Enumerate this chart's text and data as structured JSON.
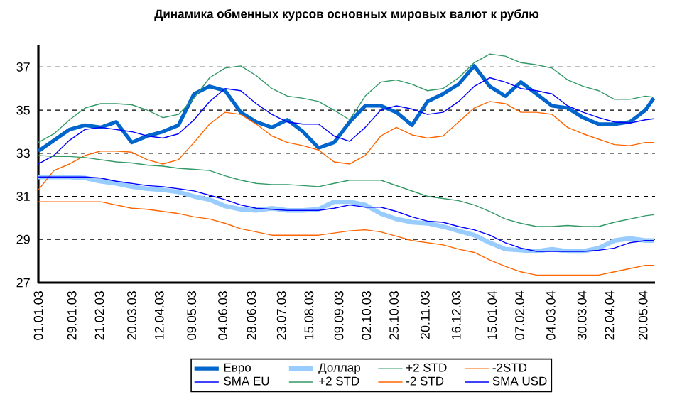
{
  "chart_data": {
    "type": "line",
    "title": "Динамика обменных курсов основных мировых валют к рублю",
    "x": [
      "2003-01-01",
      "2003-01-14",
      "2003-01-27",
      "2003-02-09",
      "2003-02-22",
      "2003-03-07",
      "2003-03-20",
      "2003-04-02",
      "2003-04-15",
      "2003-04-28",
      "2003-05-11",
      "2003-05-24",
      "2003-06-06",
      "2003-06-19",
      "2003-07-02",
      "2003-07-15",
      "2003-07-28",
      "2003-08-10",
      "2003-08-23",
      "2003-09-05",
      "2003-09-18",
      "2003-10-01",
      "2003-10-14",
      "2003-10-27",
      "2003-11-09",
      "2003-11-22",
      "2003-12-05",
      "2003-12-18",
      "2003-12-31",
      "2004-01-13",
      "2004-01-26",
      "2004-02-08",
      "2004-02-21",
      "2004-03-05",
      "2004-03-18",
      "2004-03-31",
      "2004-04-13",
      "2004-04-26",
      "2004-05-09",
      "2004-05-22",
      "2004-05-29"
    ],
    "series": [
      {
        "name": "Евро",
        "color": "#0066cc",
        "values": [
          33.1,
          33.6,
          34.1,
          34.3,
          34.2,
          34.45,
          33.5,
          33.8,
          34.0,
          34.3,
          35.75,
          36.1,
          35.9,
          34.9,
          34.45,
          34.2,
          34.55,
          34.0,
          33.25,
          33.5,
          34.45,
          35.2,
          35.2,
          34.9,
          34.3,
          35.4,
          35.75,
          36.2,
          37.05,
          36.1,
          35.65,
          36.3,
          35.75,
          35.2,
          35.1,
          34.65,
          34.35,
          34.35,
          34.45,
          35.0,
          35.55
        ]
      },
      {
        "name": "Доллар",
        "color": "#99ccff",
        "values": [
          31.9,
          31.9,
          31.9,
          31.85,
          31.7,
          31.6,
          31.45,
          31.35,
          31.3,
          31.2,
          31.0,
          30.85,
          30.55,
          30.4,
          30.35,
          30.45,
          30.35,
          30.35,
          30.4,
          30.75,
          30.75,
          30.6,
          30.2,
          29.95,
          29.8,
          29.75,
          29.6,
          29.4,
          29.2,
          28.85,
          28.55,
          28.5,
          28.45,
          28.55,
          28.45,
          28.45,
          28.6,
          28.95,
          29.05,
          28.95,
          28.95
        ]
      },
      {
        "name": "+2 STD",
        "color": "#339966",
        "values": [
          33.5,
          33.9,
          34.55,
          35.1,
          35.3,
          35.3,
          35.25,
          35.0,
          34.65,
          34.8,
          35.55,
          36.5,
          36.95,
          37.05,
          36.6,
          36.0,
          35.65,
          35.55,
          35.4,
          35.0,
          34.55,
          35.65,
          36.3,
          36.4,
          36.2,
          35.9,
          36.0,
          36.5,
          37.2,
          37.6,
          37.5,
          37.2,
          37.1,
          36.95,
          36.4,
          36.1,
          35.9,
          35.5,
          35.5,
          35.65,
          35.6
        ]
      },
      {
        "name": "-2STD",
        "color": "#ff6600",
        "values": [
          31.3,
          32.2,
          32.5,
          32.9,
          33.1,
          33.1,
          33.05,
          32.7,
          32.5,
          32.7,
          33.5,
          34.35,
          34.9,
          34.8,
          34.35,
          33.8,
          33.5,
          33.35,
          33.15,
          32.6,
          32.5,
          32.9,
          33.8,
          34.2,
          33.85,
          33.7,
          33.8,
          34.45,
          35.1,
          35.4,
          35.3,
          34.9,
          34.9,
          34.8,
          34.2,
          33.9,
          33.65,
          33.4,
          33.35,
          33.5,
          33.5
        ]
      },
      {
        "name": "SMA EU",
        "color": "#0000ff",
        "values": [
          32.5,
          32.9,
          33.6,
          34.1,
          34.2,
          34.1,
          34.0,
          33.8,
          33.7,
          33.9,
          34.55,
          35.4,
          36.0,
          35.9,
          35.3,
          34.8,
          34.45,
          34.35,
          34.35,
          33.8,
          33.55,
          34.2,
          35.0,
          35.2,
          35.05,
          34.8,
          34.9,
          35.4,
          36.1,
          36.5,
          36.3,
          36.0,
          35.9,
          35.75,
          35.2,
          34.9,
          34.65,
          34.45,
          34.4,
          34.55,
          34.6
        ]
      },
      {
        "name": "+2 STD",
        "color": "#339966",
        "values": [
          32.9,
          32.85,
          32.85,
          32.8,
          32.7,
          32.6,
          32.55,
          32.45,
          32.4,
          32.3,
          32.25,
          32.2,
          31.95,
          31.75,
          31.6,
          31.55,
          31.55,
          31.5,
          31.45,
          31.6,
          31.75,
          31.75,
          31.75,
          31.5,
          31.25,
          31.0,
          30.9,
          30.8,
          30.6,
          30.3,
          29.95,
          29.75,
          29.6,
          29.6,
          29.65,
          29.6,
          29.6,
          29.8,
          29.95,
          30.1,
          30.15
        ]
      },
      {
        "name": "-2 STD",
        "color": "#ff6600",
        "values": [
          30.75,
          30.75,
          30.75,
          30.75,
          30.75,
          30.6,
          30.45,
          30.4,
          30.3,
          30.2,
          30.05,
          29.95,
          29.75,
          29.5,
          29.35,
          29.2,
          29.2,
          29.2,
          29.2,
          29.3,
          29.4,
          29.45,
          29.35,
          29.15,
          28.95,
          28.85,
          28.75,
          28.55,
          28.4,
          28.05,
          27.75,
          27.5,
          27.35,
          27.35,
          27.35,
          27.35,
          27.35,
          27.5,
          27.65,
          27.8,
          27.8
        ]
      },
      {
        "name": "SMA USD",
        "color": "#0000ff",
        "values": [
          31.9,
          31.9,
          31.9,
          31.9,
          31.85,
          31.7,
          31.6,
          31.5,
          31.45,
          31.35,
          31.25,
          31.05,
          30.85,
          30.6,
          30.45,
          30.4,
          30.35,
          30.35,
          30.35,
          30.45,
          30.6,
          30.5,
          30.5,
          30.3,
          30.05,
          29.85,
          29.8,
          29.6,
          29.45,
          29.2,
          28.85,
          28.6,
          28.45,
          28.45,
          28.45,
          28.45,
          28.5,
          28.6,
          28.85,
          28.95,
          28.95
        ]
      }
    ],
    "xlim": [
      "2003-01-01",
      "2004-05-30"
    ],
    "xticks": [
      {
        "value": "2003-01-01",
        "label": "01.01.03"
      },
      {
        "value": "2003-01-29",
        "label": "29.01.03"
      },
      {
        "value": "2003-02-21",
        "label": "21.02.03"
      },
      {
        "value": "2003-03-20",
        "label": "20.03.03"
      },
      {
        "value": "2003-04-12",
        "label": "12.04.03"
      },
      {
        "value": "2003-05-09",
        "label": "09.05.03"
      },
      {
        "value": "2003-06-04",
        "label": "04.06.03"
      },
      {
        "value": "2003-06-28",
        "label": "28.06.03"
      },
      {
        "value": "2003-07-23",
        "label": "23.07.03"
      },
      {
        "value": "2003-08-15",
        "label": "15.08.03"
      },
      {
        "value": "2003-09-09",
        "label": "09.09.03"
      },
      {
        "value": "2003-10-02",
        "label": "02.10.03"
      },
      {
        "value": "2003-10-25",
        "label": "25.10.03"
      },
      {
        "value": "2003-11-20",
        "label": "20.11.03"
      },
      {
        "value": "2003-12-16",
        "label": "16.12.03"
      },
      {
        "value": "2004-01-15",
        "label": "15.01.04"
      },
      {
        "value": "2004-02-07",
        "label": "07.02.04"
      },
      {
        "value": "2004-03-04",
        "label": "04.03.04"
      },
      {
        "value": "2004-03-30",
        "label": "30.03.04"
      },
      {
        "value": "2004-04-22",
        "label": "22.04.04"
      },
      {
        "value": "2004-05-20",
        "label": "20.05.04"
      }
    ],
    "ylim": [
      27,
      38
    ],
    "yticks": [
      27,
      29,
      31,
      33,
      35,
      37
    ],
    "grid": "y",
    "legend": "bottom",
    "line_style": "solid"
  }
}
